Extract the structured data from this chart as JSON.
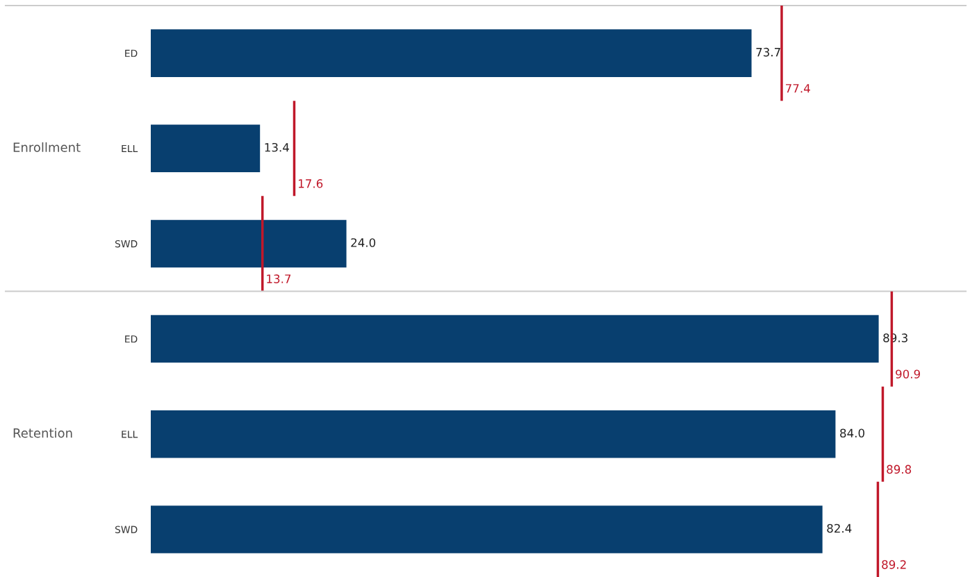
{
  "chart_data": [
    {
      "type": "bar",
      "orientation": "horizontal",
      "ylabel": "Enrollment",
      "categories": [
        "ED",
        "ELL",
        "SWD"
      ],
      "tick_labels": "y",
      "series": [
        {
          "color": "#083f6f",
          "values": [
            73.7,
            13.4,
            24.0
          ],
          "value_labels": [
            "73.7",
            "13.4",
            "24.0"
          ]
        }
      ],
      "ref_lines": [
        {
          "axis": "x",
          "value": 77.4,
          "label": "77.4",
          "color": "#c0182a"
        },
        {
          "axis": "x",
          "value": 17.6,
          "label": "17.6",
          "color": "#c0182a"
        },
        {
          "axis": "x",
          "value": 13.7,
          "label": "13.7",
          "color": "#c0182a"
        }
      ]
    },
    {
      "type": "bar",
      "orientation": "horizontal",
      "ylabel": "Retention",
      "categories": [
        "ED",
        "ELL",
        "SWD"
      ],
      "tick_labels": "y",
      "series": [
        {
          "color": "#083f6f",
          "values": [
            89.3,
            84.0,
            82.4
          ],
          "value_labels": [
            "89.3",
            "84.0",
            "82.4"
          ]
        }
      ],
      "ref_lines": [
        {
          "axis": "x",
          "value": 90.9,
          "label": "90.9",
          "color": "#c0182a"
        },
        {
          "axis": "x",
          "value": 89.8,
          "label": "89.8",
          "color": "#c0182a"
        },
        {
          "axis": "x",
          "value": 89.2,
          "label": "89.2",
          "color": "#c0182a"
        }
      ]
    }
  ]
}
